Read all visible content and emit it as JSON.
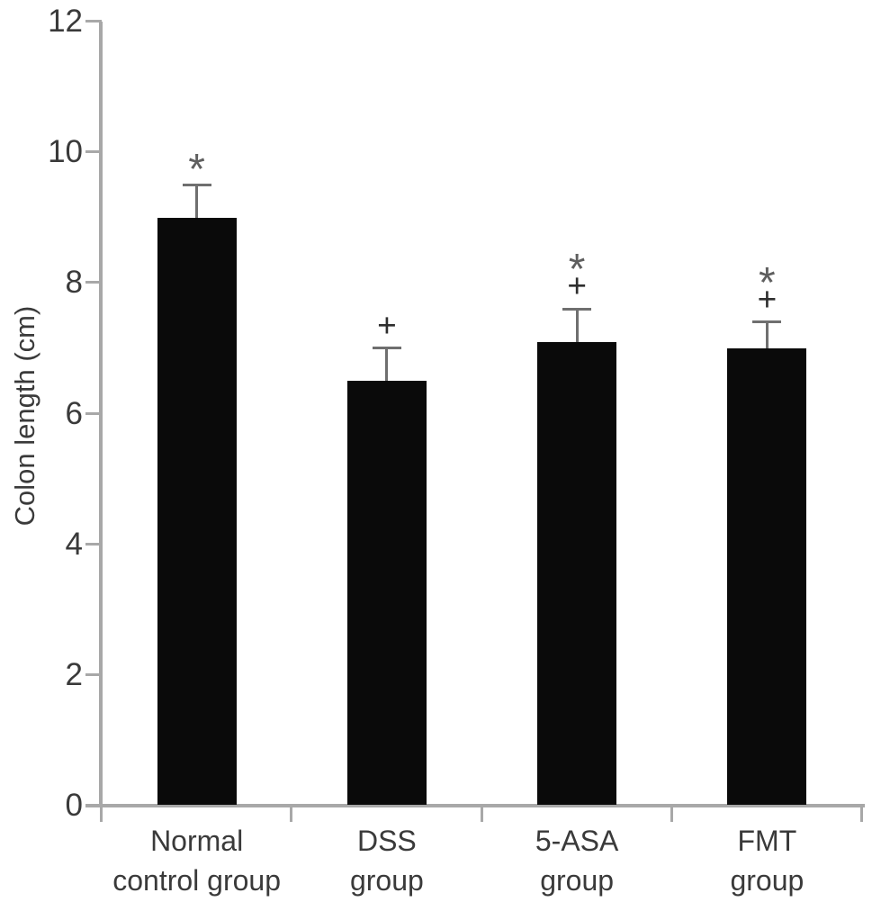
{
  "chart_data": {
    "type": "bar",
    "title": "",
    "xlabel": "",
    "ylabel": "Colon length (cm)",
    "ylim": [
      0,
      12
    ],
    "yticks": [
      0,
      2,
      4,
      6,
      8,
      10,
      12
    ],
    "grid": false,
    "legend": false,
    "categories": [
      "Normal control group",
      "DSS group",
      "5-ASA group",
      "FMT group"
    ],
    "category_label_lines": [
      [
        "Normal",
        "control group"
      ],
      [
        "DSS",
        "group"
      ],
      [
        "5-ASA",
        "group"
      ],
      [
        "FMT",
        "group"
      ]
    ],
    "series": [
      {
        "name": "Colon length (cm)",
        "values": [
          9.0,
          6.5,
          7.1,
          7.0
        ],
        "error_sd": [
          0.5,
          0.5,
          0.5,
          0.4
        ]
      }
    ],
    "significance_markers": [
      [
        "*"
      ],
      [
        "+"
      ],
      [
        "*",
        "+"
      ],
      [
        "*",
        "+"
      ]
    ],
    "colors": {
      "background": "#ffffff",
      "bar": "#0a0a0a",
      "axis": "#a8a8a8",
      "error_bar": "#6f6f6f",
      "text": "#3a3a3a",
      "marker_plus": "#2e2e2e",
      "marker_star": "#5f5f5f"
    }
  }
}
